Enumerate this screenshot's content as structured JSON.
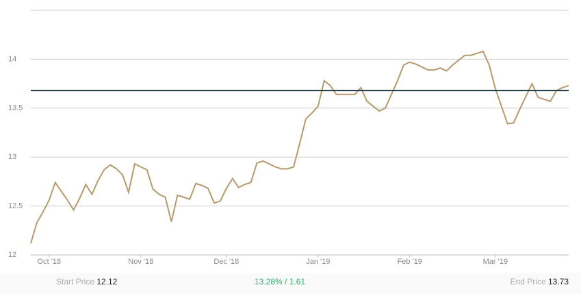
{
  "chart_data": {
    "type": "line",
    "categories": [
      null,
      null,
      null,
      "Oct '18",
      null,
      null,
      null,
      null,
      null,
      null,
      null,
      null,
      null,
      null,
      null,
      null,
      null,
      null,
      "Nov '18",
      null,
      null,
      null,
      null,
      null,
      null,
      null,
      null,
      null,
      null,
      null,
      null,
      null,
      "Dec '18",
      null,
      null,
      null,
      null,
      null,
      null,
      null,
      null,
      null,
      null,
      null,
      null,
      null,
      null,
      "Jan '19",
      null,
      null,
      null,
      null,
      null,
      null,
      null,
      null,
      null,
      null,
      null,
      null,
      null,
      null,
      "Feb '19",
      null,
      null,
      null,
      null,
      null,
      null,
      null,
      null,
      null,
      null,
      null,
      null,
      null,
      "Mar '19",
      null,
      null,
      null,
      null,
      null,
      null,
      null,
      null,
      null,
      null,
      null,
      null
    ],
    "values": [
      12.12,
      12.33,
      12.44,
      12.56,
      12.74,
      12.65,
      12.56,
      12.46,
      12.58,
      12.72,
      12.62,
      12.76,
      12.87,
      12.92,
      12.88,
      12.82,
      12.64,
      12.93,
      12.9,
      12.87,
      12.67,
      12.62,
      12.59,
      12.34,
      12.61,
      12.59,
      12.57,
      12.73,
      12.71,
      12.68,
      12.53,
      12.55,
      12.68,
      12.78,
      12.69,
      12.72,
      12.74,
      12.94,
      12.96,
      12.93,
      12.9,
      12.88,
      12.88,
      12.9,
      13.14,
      13.39,
      13.45,
      13.52,
      13.78,
      13.73,
      13.64,
      13.64,
      13.64,
      13.64,
      13.71,
      13.57,
      13.52,
      13.47,
      13.5,
      13.64,
      13.78,
      13.94,
      13.97,
      13.95,
      13.92,
      13.89,
      13.89,
      13.91,
      13.88,
      13.94,
      13.99,
      14.04,
      14.04,
      14.06,
      14.08,
      13.94,
      13.7,
      13.52,
      13.34,
      13.35,
      13.49,
      13.62,
      13.75,
      13.61,
      13.59,
      13.57,
      13.68,
      13.71,
      13.73
    ],
    "color": "#b59a6d",
    "reference_line": 13.68,
    "reference_color": "#1e3540",
    "ylim": [
      12,
      14.5
    ],
    "yticks": [
      12,
      12.5,
      13,
      13.5,
      14
    ],
    "grid": true
  },
  "summary": {
    "start_label": "Start Price",
    "start_price": 12.12,
    "change": "13.28% / 1.61",
    "end_label": "End Price",
    "end_price": 13.73
  }
}
